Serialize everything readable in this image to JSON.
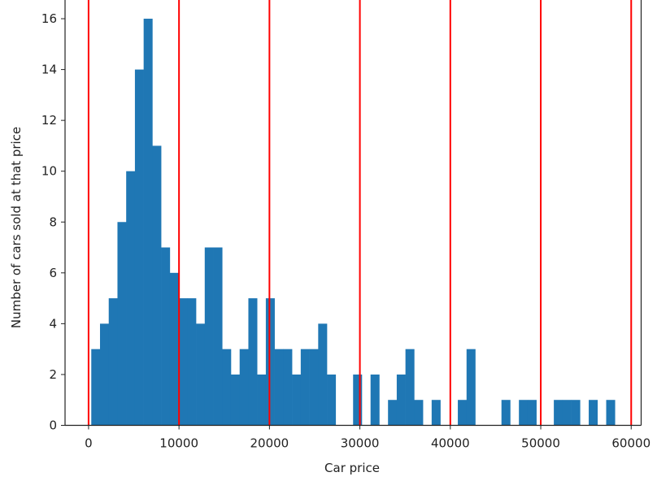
{
  "chart_data": {
    "type": "bar",
    "subtype": "histogram",
    "title": "",
    "xlabel": "Car price",
    "ylabel": "Number of cars sold at that price",
    "xlim": [
      -2600,
      61100
    ],
    "ylim": [
      0,
      16.8
    ],
    "grid": false,
    "bar_color": "#1f77b4",
    "bins": {
      "start": 300,
      "width": 965,
      "count": 60
    },
    "counts": [
      3,
      4,
      5,
      8,
      10,
      14,
      16,
      11,
      7,
      6,
      5,
      5,
      4,
      7,
      7,
      3,
      2,
      3,
      5,
      2,
      5,
      3,
      3,
      2,
      3,
      3,
      4,
      2,
      0,
      0,
      2,
      0,
      2,
      0,
      1,
      2,
      3,
      1,
      0,
      1,
      0,
      0,
      1,
      3,
      0,
      0,
      0,
      1,
      0,
      1,
      1,
      0,
      0,
      1,
      1,
      1,
      0,
      1,
      0,
      1
    ],
    "vlines": {
      "color": "#ff0000",
      "x": [
        0,
        10000,
        20000,
        30000,
        40000,
        50000,
        60000
      ]
    },
    "xticks": [
      0,
      10000,
      20000,
      30000,
      40000,
      50000,
      60000
    ],
    "xtick_labels": [
      "0",
      "10000",
      "20000",
      "30000",
      "40000",
      "50000",
      "60000"
    ],
    "yticks": [
      0,
      2,
      4,
      6,
      8,
      10,
      12,
      14,
      16
    ],
    "ytick_labels": [
      "0",
      "2",
      "4",
      "6",
      "8",
      "10",
      "12",
      "14",
      "16"
    ]
  }
}
